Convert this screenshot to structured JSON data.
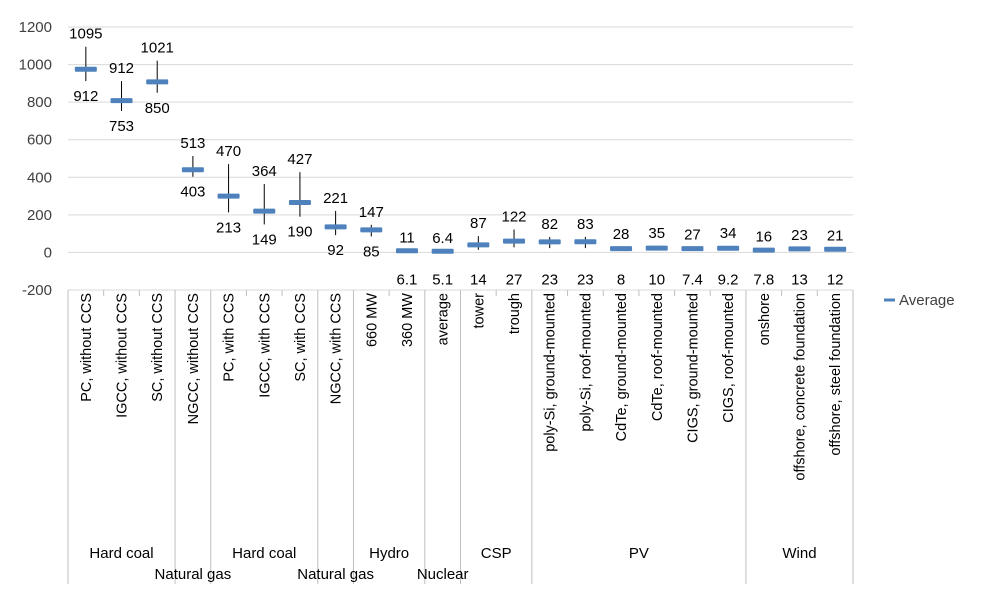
{
  "chart_data": {
    "type": "range",
    "title": "",
    "xlabel": "",
    "ylabel": "",
    "ylim": [
      -200,
      1200
    ],
    "y_ticks": [
      -200,
      0,
      200,
      400,
      600,
      800,
      1000,
      1200
    ],
    "grid": true,
    "legend": {
      "position": "right",
      "entries": [
        "Average"
      ]
    },
    "series_color": "#4f81bd",
    "categories": [
      {
        "label": "PC, without CCS",
        "group": "Hard coal",
        "average": 975,
        "max": 1095,
        "min": 912
      },
      {
        "label": "IGCC, without CCS",
        "group": "Hard coal",
        "average": 808,
        "max": 912,
        "min": 753
      },
      {
        "label": "SC, without CCS",
        "group": "Hard coal",
        "average": 908,
        "max": 1021,
        "min": 850
      },
      {
        "label": "NGCC, without CCS",
        "group": "Natural gas",
        "average": 440,
        "max": 513,
        "min": 403
      },
      {
        "label": "PC, with CCS",
        "group": "Hard coal",
        "average": 300,
        "max": 470,
        "min": 213
      },
      {
        "label": "IGCC, with CCS",
        "group": "Hard coal",
        "average": 220,
        "max": 364,
        "min": 149
      },
      {
        "label": "SC, with CCS",
        "group": "Hard coal",
        "average": 266,
        "max": 427,
        "min": 190
      },
      {
        "label": "NGCC, with CCS",
        "group": "Natural gas",
        "average": 136,
        "max": 221,
        "min": 92
      },
      {
        "label": "660 MW",
        "group": "Hydro",
        "average": 120,
        "max": 147,
        "min": 85
      },
      {
        "label": "360 MW",
        "group": "Hydro",
        "average": 9,
        "max": 11,
        "min": 6.1
      },
      {
        "label": "average",
        "group": "Nuclear",
        "average": 6,
        "max": 6.4,
        "min": 5.1
      },
      {
        "label": "tower",
        "group": "CSP",
        "average": 40,
        "max": 87,
        "min": 14
      },
      {
        "label": "trough",
        "group": "CSP",
        "average": 60,
        "max": 122,
        "min": 27
      },
      {
        "label": "poly-Si, ground-mounted",
        "group": "PV",
        "average": 56,
        "max": 82,
        "min": 23
      },
      {
        "label": "poly-Si, roof-mounted",
        "group": "PV",
        "average": 57,
        "max": 83,
        "min": 23
      },
      {
        "label": "CdTe, ground-mounted",
        "group": "PV",
        "average": 20,
        "max": 28,
        "min": 8
      },
      {
        "label": "CdTe, roof-mounted",
        "group": "PV",
        "average": 23,
        "max": 35,
        "min": 10
      },
      {
        "label": "CIGS, ground-mounted",
        "group": "PV",
        "average": 20,
        "max": 27,
        "min": 7.4
      },
      {
        "label": "CIGS, roof-mounted",
        "group": "PV",
        "average": 22,
        "max": 34,
        "min": 9.2
      },
      {
        "label": "onshore",
        "group": "Wind",
        "average": 12,
        "max": 16,
        "min": 7.8
      },
      {
        "label": "offshore, concrete foundation",
        "group": "Wind",
        "average": 19,
        "max": 23,
        "min": 13
      },
      {
        "label": "offshore, steel foundation",
        "group": "Wind",
        "average": 17,
        "max": 21,
        "min": 12
      }
    ],
    "groups": [
      {
        "label": "Hard coal",
        "start": 0,
        "end": 2,
        "row": 1
      },
      {
        "label": "Natural gas",
        "start": 3,
        "end": 3,
        "row": 2
      },
      {
        "label": "Hard coal",
        "start": 4,
        "end": 6,
        "row": 1
      },
      {
        "label": "Natural gas",
        "start": 7,
        "end": 7,
        "row": 2
      },
      {
        "label": "Hydro",
        "start": 8,
        "end": 9,
        "row": 1
      },
      {
        "label": "Nuclear",
        "start": 10,
        "end": 10,
        "row": 2
      },
      {
        "label": "CSP",
        "start": 11,
        "end": 12,
        "row": 1
      },
      {
        "label": "PV",
        "start": 13,
        "end": 18,
        "row": 1
      },
      {
        "label": "Wind",
        "start": 19,
        "end": 21,
        "row": 1
      }
    ]
  }
}
